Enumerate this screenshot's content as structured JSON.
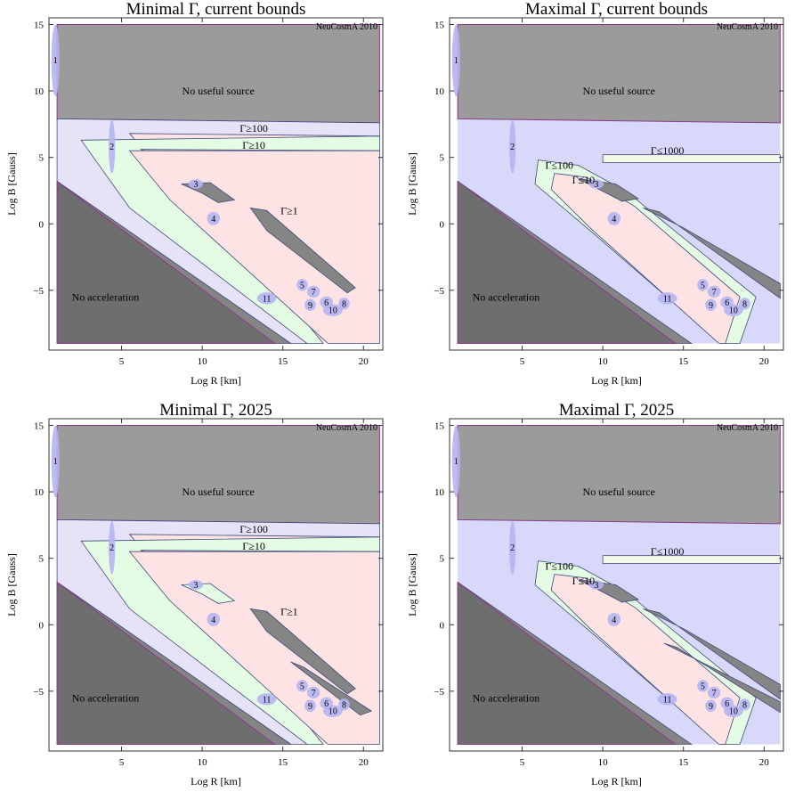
{
  "figure": {
    "colors": {
      "no_source": "#9b9b9b",
      "no_accel": "#6e6e6e",
      "mid_gray": "#858585",
      "lavender": "#e6e3f8",
      "lavender_max": "#d8d8fa",
      "green": "#e4fbe4",
      "pink": "#fde3e3",
      "boundary": "#8a3a8a",
      "contour": "#404a7a",
      "ellipse": "#b5b5f2"
    }
  },
  "chart_data": [
    {
      "type": "contour-region",
      "title": "Minimal Γ, current bounds",
      "xlabel": "Log R [km]",
      "ylabel": "Log B [Gauss]",
      "xlim": [
        0.5,
        21.2
      ],
      "ylim": [
        -9.5,
        15.5
      ],
      "xticks": [
        "5",
        "10",
        "15",
        "20"
      ],
      "yticks": [
        "-5",
        "0",
        "5",
        "10",
        "15"
      ],
      "watermark": "NeuCosmA 2010",
      "region_labels": [
        "No useful source",
        "No acceleration",
        "Γ≥100",
        "Γ≥10",
        "Γ≥1"
      ],
      "variant": "minimal",
      "epoch": "current",
      "sources": [
        {
          "id": "1",
          "x": 0.9,
          "y": 12.3,
          "rx": 0.25,
          "ry": 2.7
        },
        {
          "id": "2",
          "x": 4.4,
          "y": 5.8,
          "rx": 0.2,
          "ry": 2.0
        },
        {
          "id": "3",
          "x": 9.6,
          "y": 3.0,
          "rx": 0.45,
          "ry": 0.35
        },
        {
          "id": "4",
          "x": 10.7,
          "y": 0.4,
          "rx": 0.4,
          "ry": 0.5
        },
        {
          "id": "5",
          "x": 16.2,
          "y": -4.6,
          "rx": 0.35,
          "ry": 0.45
        },
        {
          "id": "6",
          "x": 17.7,
          "y": -5.9,
          "rx": 0.4,
          "ry": 0.45
        },
        {
          "id": "7",
          "x": 16.9,
          "y": -5.1,
          "rx": 0.4,
          "ry": 0.45
        },
        {
          "id": "8",
          "x": 18.8,
          "y": -6.0,
          "rx": 0.35,
          "ry": 0.45
        },
        {
          "id": "9",
          "x": 16.7,
          "y": -6.1,
          "rx": 0.35,
          "ry": 0.45
        },
        {
          "id": "10",
          "x": 18.1,
          "y": -6.5,
          "rx": 0.6,
          "ry": 0.45
        },
        {
          "id": "11",
          "x": 14.0,
          "y": -5.6,
          "rx": 0.6,
          "ry": 0.45
        }
      ]
    },
    {
      "type": "contour-region",
      "title": "Maximal Γ, current bounds",
      "xlabel": "Log R [km]",
      "ylabel": "Log B [Gauss]",
      "xlim": [
        0.5,
        21.2
      ],
      "ylim": [
        -9.5,
        15.5
      ],
      "xticks": [
        "5",
        "10",
        "15",
        "20"
      ],
      "yticks": [
        "-5",
        "0",
        "5",
        "10",
        "15"
      ],
      "watermark": "NeuCosmA 2010",
      "region_labels": [
        "No useful source",
        "No acceleration",
        "Γ≤1000",
        "Γ≤100",
        "Γ≤10"
      ],
      "variant": "maximal",
      "epoch": "current",
      "sources": [
        {
          "id": "1",
          "x": 0.9,
          "y": 12.3,
          "rx": 0.25,
          "ry": 2.7
        },
        {
          "id": "2",
          "x": 4.4,
          "y": 5.8,
          "rx": 0.2,
          "ry": 2.0
        },
        {
          "id": "3",
          "x": 9.6,
          "y": 3.0,
          "rx": 0.45,
          "ry": 0.35
        },
        {
          "id": "4",
          "x": 10.7,
          "y": 0.4,
          "rx": 0.4,
          "ry": 0.5
        },
        {
          "id": "5",
          "x": 16.2,
          "y": -4.6,
          "rx": 0.35,
          "ry": 0.45
        },
        {
          "id": "6",
          "x": 17.7,
          "y": -5.9,
          "rx": 0.4,
          "ry": 0.45
        },
        {
          "id": "7",
          "x": 16.9,
          "y": -5.1,
          "rx": 0.4,
          "ry": 0.45
        },
        {
          "id": "8",
          "x": 18.8,
          "y": -6.0,
          "rx": 0.35,
          "ry": 0.45
        },
        {
          "id": "9",
          "x": 16.7,
          "y": -6.1,
          "rx": 0.35,
          "ry": 0.45
        },
        {
          "id": "10",
          "x": 18.1,
          "y": -6.5,
          "rx": 0.6,
          "ry": 0.45
        },
        {
          "id": "11",
          "x": 14.0,
          "y": -5.6,
          "rx": 0.6,
          "ry": 0.45
        }
      ]
    },
    {
      "type": "contour-region",
      "title": "Minimal Γ, 2025",
      "xlabel": "Log R [km]",
      "ylabel": "Log B [Gauss]",
      "xlim": [
        0.5,
        21.2
      ],
      "ylim": [
        -9.5,
        15.5
      ],
      "xticks": [
        "5",
        "10",
        "15",
        "20"
      ],
      "yticks": [
        "-5",
        "0",
        "5",
        "10",
        "15"
      ],
      "watermark": "NeuCosmA 2010",
      "region_labels": [
        "No useful source",
        "No acceleration",
        "Γ≥100",
        "Γ≥10",
        "Γ≥1"
      ],
      "variant": "minimal",
      "epoch": "2025",
      "sources": [
        {
          "id": "1",
          "x": 0.9,
          "y": 12.3,
          "rx": 0.25,
          "ry": 2.7
        },
        {
          "id": "2",
          "x": 4.4,
          "y": 5.8,
          "rx": 0.2,
          "ry": 2.0
        },
        {
          "id": "3",
          "x": 9.6,
          "y": 3.0,
          "rx": 0.45,
          "ry": 0.35
        },
        {
          "id": "4",
          "x": 10.7,
          "y": 0.4,
          "rx": 0.4,
          "ry": 0.5
        },
        {
          "id": "5",
          "x": 16.2,
          "y": -4.6,
          "rx": 0.35,
          "ry": 0.45
        },
        {
          "id": "6",
          "x": 17.7,
          "y": -5.9,
          "rx": 0.4,
          "ry": 0.45
        },
        {
          "id": "7",
          "x": 16.9,
          "y": -5.1,
          "rx": 0.4,
          "ry": 0.45
        },
        {
          "id": "8",
          "x": 18.8,
          "y": -6.0,
          "rx": 0.35,
          "ry": 0.45
        },
        {
          "id": "9",
          "x": 16.7,
          "y": -6.1,
          "rx": 0.35,
          "ry": 0.45
        },
        {
          "id": "10",
          "x": 18.1,
          "y": -6.5,
          "rx": 0.6,
          "ry": 0.45
        },
        {
          "id": "11",
          "x": 14.0,
          "y": -5.6,
          "rx": 0.6,
          "ry": 0.45
        }
      ]
    },
    {
      "type": "contour-region",
      "title": "Maximal Γ, 2025",
      "xlabel": "Log R [km]",
      "ylabel": "Log B [Gauss]",
      "xlim": [
        0.5,
        21.2
      ],
      "ylim": [
        -9.5,
        15.5
      ],
      "xticks": [
        "5",
        "10",
        "15",
        "20"
      ],
      "yticks": [
        "-5",
        "0",
        "5",
        "10",
        "15"
      ],
      "watermark": "NeuCosmA 2010",
      "region_labels": [
        "No useful source",
        "No acceleration",
        "Γ≤1000",
        "Γ≤100",
        "Γ≤10"
      ],
      "variant": "maximal",
      "epoch": "2025",
      "sources": [
        {
          "id": "1",
          "x": 0.9,
          "y": 12.3,
          "rx": 0.25,
          "ry": 2.7
        },
        {
          "id": "2",
          "x": 4.4,
          "y": 5.8,
          "rx": 0.2,
          "ry": 2.0
        },
        {
          "id": "3",
          "x": 9.6,
          "y": 3.0,
          "rx": 0.45,
          "ry": 0.35
        },
        {
          "id": "4",
          "x": 10.7,
          "y": 0.4,
          "rx": 0.4,
          "ry": 0.5
        },
        {
          "id": "5",
          "x": 16.2,
          "y": -4.6,
          "rx": 0.35,
          "ry": 0.45
        },
        {
          "id": "6",
          "x": 17.7,
          "y": -5.9,
          "rx": 0.4,
          "ry": 0.45
        },
        {
          "id": "7",
          "x": 16.9,
          "y": -5.1,
          "rx": 0.4,
          "ry": 0.45
        },
        {
          "id": "8",
          "x": 18.8,
          "y": -6.0,
          "rx": 0.35,
          "ry": 0.45
        },
        {
          "id": "9",
          "x": 16.7,
          "y": -6.1,
          "rx": 0.35,
          "ry": 0.45
        },
        {
          "id": "10",
          "x": 18.1,
          "y": -6.5,
          "rx": 0.6,
          "ry": 0.45
        },
        {
          "id": "11",
          "x": 14.0,
          "y": -5.6,
          "rx": 0.6,
          "ry": 0.45
        }
      ]
    }
  ]
}
